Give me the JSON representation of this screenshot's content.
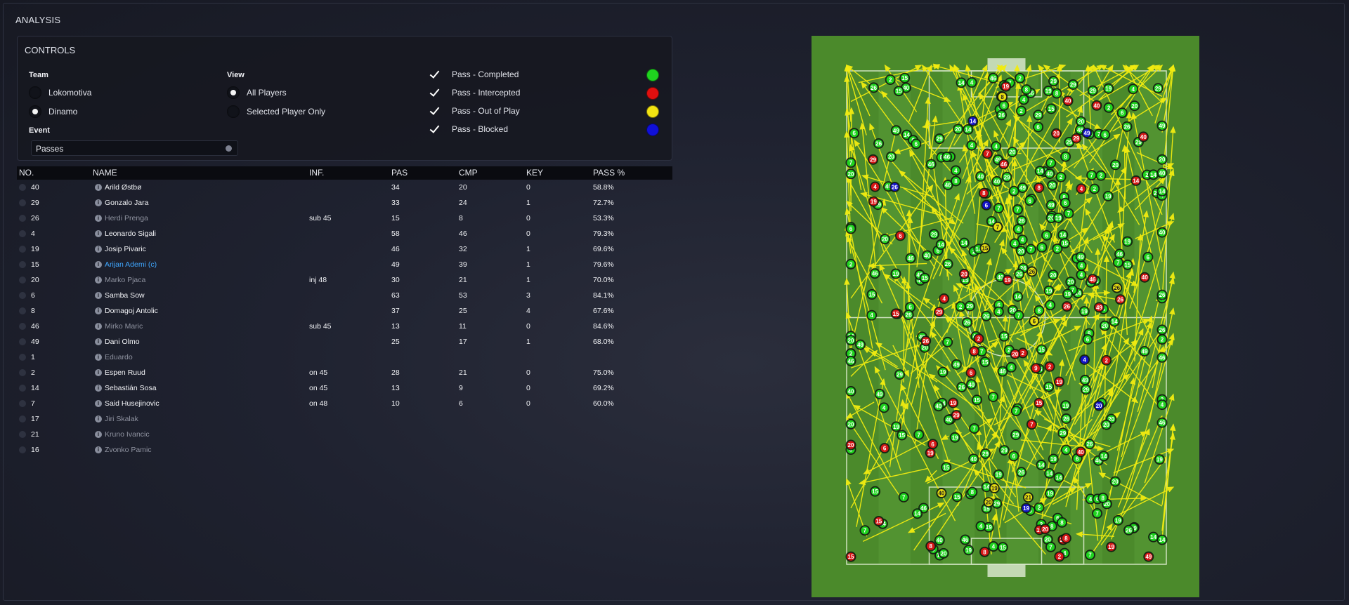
{
  "title": "ANALYSIS",
  "controls": {
    "header": "CONTROLS",
    "team_label": "Team",
    "teams": [
      {
        "label": "Lokomotiva",
        "selected": false
      },
      {
        "label": "Dinamo",
        "selected": true
      }
    ],
    "view_label": "View",
    "views": [
      {
        "label": "All Players",
        "selected": true
      },
      {
        "label": "Selected Player Only",
        "selected": false
      }
    ],
    "event_label": "Event",
    "event_value": "Passes",
    "filters": [
      {
        "label": "Pass - Completed",
        "checked": true,
        "color": "#1fd31f"
      },
      {
        "label": "Pass - Intercepted",
        "checked": true,
        "color": "#e10f0f"
      },
      {
        "label": "Pass - Out of Play",
        "checked": true,
        "color": "#f2e312"
      },
      {
        "label": "Pass - Blocked",
        "checked": true,
        "color": "#1010d8"
      }
    ]
  },
  "table": {
    "headers": {
      "no": "NO.",
      "name": "NAME",
      "inf": "INF.",
      "pas": "PAS",
      "cmp": "CMP",
      "key": "KEY",
      "pct": "PASS %"
    },
    "rows": [
      {
        "no": "40",
        "name": "Arild Østbø",
        "inf": "",
        "pas": "34",
        "cmp": "20",
        "key": "0",
        "pct": "58.8%",
        "style": "normal"
      },
      {
        "no": "29",
        "name": "Gonzalo Jara",
        "inf": "",
        "pas": "33",
        "cmp": "24",
        "key": "1",
        "pct": "72.7%",
        "style": "normal"
      },
      {
        "no": "26",
        "name": "Herdi Prenga",
        "inf": "sub 45",
        "pas": "15",
        "cmp": "8",
        "key": "0",
        "pct": "53.3%",
        "style": "dim"
      },
      {
        "no": "4",
        "name": "Leonardo Sigali",
        "inf": "",
        "pas": "58",
        "cmp": "46",
        "key": "0",
        "pct": "79.3%",
        "style": "normal"
      },
      {
        "no": "19",
        "name": "Josip Pivaric",
        "inf": "",
        "pas": "46",
        "cmp": "32",
        "key": "1",
        "pct": "69.6%",
        "style": "normal"
      },
      {
        "no": "15",
        "name": "Arijan Ademi (c)",
        "inf": "",
        "pas": "49",
        "cmp": "39",
        "key": "1",
        "pct": "79.6%",
        "style": "cap"
      },
      {
        "no": "20",
        "name": "Marko Pjaca",
        "inf": "inj 48",
        "pas": "30",
        "cmp": "21",
        "key": "1",
        "pct": "70.0%",
        "style": "dim"
      },
      {
        "no": "6",
        "name": "Samba Sow",
        "inf": "",
        "pas": "63",
        "cmp": "53",
        "key": "3",
        "pct": "84.1%",
        "style": "normal"
      },
      {
        "no": "8",
        "name": "Domagoj Antolic",
        "inf": "",
        "pas": "37",
        "cmp": "25",
        "key": "4",
        "pct": "67.6%",
        "style": "normal"
      },
      {
        "no": "46",
        "name": "Mirko Maric",
        "inf": "sub 45",
        "pas": "13",
        "cmp": "11",
        "key": "0",
        "pct": "84.6%",
        "style": "dim"
      },
      {
        "no": "49",
        "name": "Dani Olmo",
        "inf": "",
        "pas": "25",
        "cmp": "17",
        "key": "1",
        "pct": "68.0%",
        "style": "normal"
      },
      {
        "no": "1",
        "name": "Eduardo",
        "inf": "",
        "pas": "",
        "cmp": "",
        "key": "",
        "pct": "",
        "style": "dim"
      },
      {
        "no": "2",
        "name": "Espen Ruud",
        "inf": "on 45",
        "pas": "28",
        "cmp": "21",
        "key": "0",
        "pct": "75.0%",
        "style": "normal"
      },
      {
        "no": "14",
        "name": "Sebastián Sosa",
        "inf": "on 45",
        "pas": "13",
        "cmp": "9",
        "key": "0",
        "pct": "69.2%",
        "style": "normal"
      },
      {
        "no": "7",
        "name": "Said Husejinovic",
        "inf": "on 48",
        "pas": "10",
        "cmp": "6",
        "key": "0",
        "pct": "60.0%",
        "style": "normal"
      },
      {
        "no": "17",
        "name": "Jiri Skalak",
        "inf": "",
        "pas": "",
        "cmp": "",
        "key": "",
        "pct": "",
        "style": "dim"
      },
      {
        "no": "21",
        "name": "Kruno Ivancic",
        "inf": "",
        "pas": "",
        "cmp": "",
        "key": "",
        "pct": "",
        "style": "dim"
      },
      {
        "no": "16",
        "name": "Zvonko Pamic",
        "inf": "",
        "pas": "",
        "cmp": "",
        "key": "",
        "pct": "",
        "style": "dim"
      }
    ]
  },
  "pitch": {
    "colors": {
      "grass": "#4b8a2b",
      "stripe": "#5a9a36",
      "line": "#cfe2bf",
      "arrow": "#f2ec10"
    },
    "markers": [
      {
        "n": "8",
        "t": "i"
      },
      {
        "n": "19",
        "t": "i"
      },
      {
        "n": "7",
        "t": "o"
      },
      {
        "n": "2",
        "t": "i"
      },
      {
        "n": "2",
        "t": "i"
      },
      {
        "n": "49",
        "t": "i"
      },
      {
        "n": "49",
        "t": "b"
      },
      {
        "n": "29",
        "t": "i"
      },
      {
        "n": "19",
        "t": "b"
      },
      {
        "n": "6",
        "t": "b"
      },
      {
        "n": "8",
        "t": "i"
      },
      {
        "n": "20",
        "t": "i"
      },
      {
        "n": "8",
        "t": "i"
      },
      {
        "n": "2",
        "t": "i"
      },
      {
        "n": "7",
        "t": "i"
      },
      {
        "n": "14",
        "t": "b"
      },
      {
        "n": "20",
        "t": "o"
      },
      {
        "n": "8",
        "t": "o"
      },
      {
        "n": "46",
        "t": "i"
      },
      {
        "n": "29",
        "t": "i"
      },
      {
        "n": "6",
        "t": "i"
      },
      {
        "n": "14",
        "t": "i"
      },
      {
        "n": "8",
        "t": "i"
      },
      {
        "n": "6",
        "t": "o"
      },
      {
        "n": "6",
        "t": "i"
      },
      {
        "n": "49",
        "t": "i"
      },
      {
        "n": "20",
        "t": "b"
      },
      {
        "n": "15",
        "t": "i"
      },
      {
        "n": "2",
        "t": "i"
      },
      {
        "n": "15",
        "t": "i"
      },
      {
        "n": "6",
        "t": "i"
      },
      {
        "n": "9",
        "t": "i"
      },
      {
        "n": "8",
        "t": "i"
      },
      {
        "n": "19",
        "t": "i"
      },
      {
        "n": "2",
        "t": "i"
      },
      {
        "n": "26",
        "t": "b"
      },
      {
        "n": "4",
        "t": "i"
      },
      {
        "n": "26",
        "t": "i"
      },
      {
        "n": "29",
        "t": "i"
      },
      {
        "n": "19",
        "t": "i"
      },
      {
        "n": "19",
        "t": "i"
      },
      {
        "n": "7",
        "t": "i"
      },
      {
        "n": "4",
        "t": "i"
      },
      {
        "n": "20",
        "t": "i"
      },
      {
        "n": "19",
        "t": "i"
      },
      {
        "n": "6",
        "t": "i"
      },
      {
        "n": "19",
        "t": "i"
      },
      {
        "n": "46",
        "t": "i"
      },
      {
        "n": "20",
        "t": "i"
      },
      {
        "n": "29",
        "t": "i"
      },
      {
        "n": "29",
        "t": "i"
      },
      {
        "n": "8",
        "t": "i"
      },
      {
        "n": "15",
        "t": "o"
      },
      {
        "n": "19",
        "t": "i"
      },
      {
        "n": "15",
        "t": "i"
      },
      {
        "n": "26",
        "t": "o"
      },
      {
        "n": "40",
        "t": "i"
      },
      {
        "n": "40",
        "t": "i"
      },
      {
        "n": "4",
        "t": "b"
      },
      {
        "n": "15",
        "t": "i"
      },
      {
        "n": "26",
        "t": "o"
      },
      {
        "n": "19",
        "t": "o"
      },
      {
        "n": "40",
        "t": "o"
      },
      {
        "n": "40",
        "t": "i"
      },
      {
        "n": "20",
        "t": "i"
      },
      {
        "n": "26",
        "t": "i"
      },
      {
        "n": "26",
        "t": "i"
      },
      {
        "n": "40",
        "t": "i"
      },
      {
        "n": "20",
        "t": "i"
      },
      {
        "n": "4",
        "t": "i"
      },
      {
        "n": "40",
        "t": "i"
      },
      {
        "n": "19",
        "t": "i"
      },
      {
        "n": "21",
        "t": "o"
      }
    ]
  }
}
